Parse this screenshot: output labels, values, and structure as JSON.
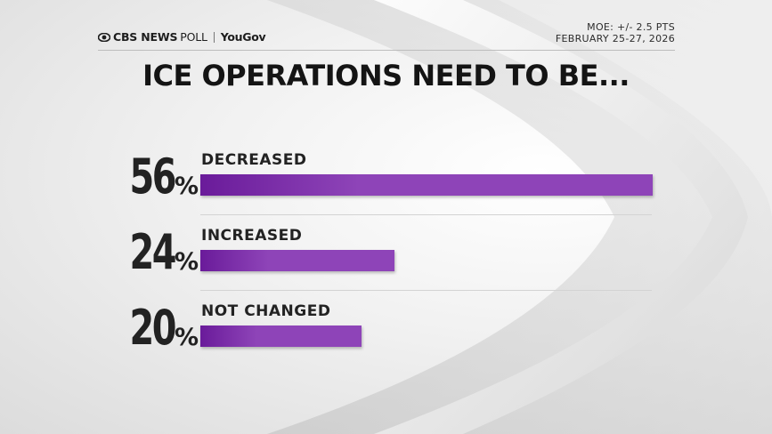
{
  "brand": {
    "network": "CBS NEWS",
    "poll": "POLL",
    "partner": "YouGov"
  },
  "meta": {
    "moe": "MOE: +/- 2.5 PTS",
    "dates": "FEBRUARY 25-27, 2026"
  },
  "colors": {
    "bar_dark": "#6a1b9a",
    "bar_light": "#8e44b8",
    "text": "#222222"
  },
  "chart_data": {
    "type": "bar",
    "orientation": "horizontal",
    "title": "ICE OPERATIONS NEED TO BE...",
    "categories": [
      "DECREASED",
      "INCREASED",
      "NOT CHANGED"
    ],
    "values": [
      56,
      24,
      20
    ],
    "value_labels": [
      "56",
      "24",
      "20"
    ],
    "unit": "%",
    "xlim": [
      0,
      56
    ],
    "grid": false,
    "legend": "none"
  }
}
